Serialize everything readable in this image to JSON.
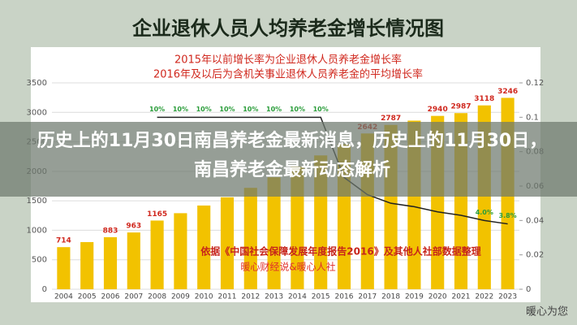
{
  "chart_data": {
    "type": "bar",
    "title": "企业退休人员人均养老金增长情况图",
    "subtitle": [
      "2015年以前增长率为企业退休人员养老金增长率",
      "2016年及以后为含机关事业退休人员养老金的平均增长率"
    ],
    "annotations": [
      "依据《中国社会保障发展年度报告2016》及其他人社部数据整理",
      "暖心财经说&暖心人社"
    ],
    "headline": "历史上的11月30日南昌养老金最新消息，历史上的11月30日，南昌养老金最新动态解析",
    "watermark": "暖心为您",
    "categories": [
      "2004",
      "2005",
      "2006",
      "2007",
      "2008",
      "2009",
      "2010",
      "2011",
      "2012",
      "2013",
      "2014",
      "2015",
      "2016",
      "2017",
      "2018",
      "2019",
      "2020",
      "2021",
      "2022",
      "2023"
    ],
    "series": [
      {
        "name": "人均养老金",
        "color": "#f2c200",
        "values": [
          714,
          800,
          883,
          963,
          1165,
          1290,
          1420,
          1560,
          1720,
          1900,
          2080,
          2270,
          2460,
          2642,
          2787,
          2860,
          2940,
          2987,
          3118,
          3246
        ],
        "value_labels": [
          "714",
          null,
          "883",
          "963",
          "1165",
          null,
          null,
          null,
          null,
          null,
          null,
          null,
          null,
          "2642",
          "2787",
          null,
          "2940",
          "2987",
          "3118",
          "3246"
        ]
      },
      {
        "name": "增长率",
        "color": "#222222",
        "axis": "y2",
        "values": [
          null,
          null,
          null,
          null,
          0.1,
          0.1,
          0.1,
          0.1,
          0.1,
          0.1,
          0.1,
          0.1,
          0.065,
          0.055,
          0.05,
          0.048,
          0.045,
          0.043,
          0.04,
          0.038
        ],
        "value_labels": [
          null,
          null,
          null,
          null,
          "10%",
          "10%",
          "10%",
          "10%",
          "10%",
          "10%",
          "10%",
          "10%",
          null,
          null,
          null,
          null,
          null,
          null,
          "4.0%",
          "3.8%"
        ]
      }
    ],
    "ylim": [
      0,
      3500
    ],
    "yticks": [
      0,
      500,
      1000,
      1500,
      2000,
      2500,
      3000,
      3500
    ],
    "y2lim": [
      0,
      0.12
    ],
    "y2ticks": [
      0,
      0.02,
      0.04,
      0.06,
      0.08,
      0.1,
      0.12
    ],
    "grid": true
  }
}
